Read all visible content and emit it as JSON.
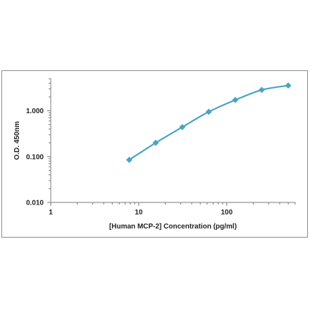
{
  "chart_data": {
    "type": "line",
    "title": "",
    "xlabel": "[Human MCP-2] Concentration (pg/ml)",
    "ylabel": "O.D. 450nm",
    "xscale": "log",
    "yscale": "log",
    "xlim": [
      1,
      600
    ],
    "ylim": [
      0.01,
      5
    ],
    "grid": false,
    "legend": "none",
    "x_ticks": [
      "1",
      "10",
      "100"
    ],
    "y_ticks": [
      "0.010",
      "0.100",
      "1.000"
    ],
    "series": [
      {
        "color": "#4aa3c4",
        "marker": "diamond",
        "x": [
          7.8,
          15.6,
          31.25,
          62.5,
          125,
          250,
          500
        ],
        "y": [
          0.085,
          0.2,
          0.44,
          0.95,
          1.72,
          2.85,
          3.55
        ]
      }
    ]
  }
}
